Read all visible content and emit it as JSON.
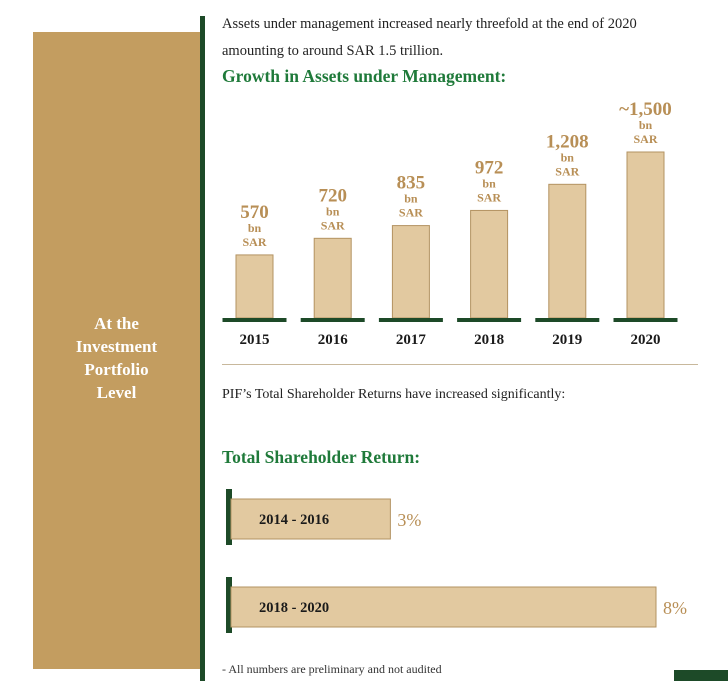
{
  "sidebar": {
    "lines": [
      "At the",
      "Investment",
      "Portfolio",
      "Level"
    ]
  },
  "intro": {
    "line1": "Assets under management increased nearly threefold at the end of 2020",
    "line2": "amounting to around SAR 1.5 trillion."
  },
  "aum_heading": "Growth in Assets under Management:",
  "tsr_intro": "PIF’s Total Shareholder Returns have increased significantly:",
  "tsr_heading": "Total Shareholder Return:",
  "footnote": "- All numbers are preliminary and not audited",
  "colors": {
    "bar_fill": "#e2c9a0",
    "bar_stroke": "#b39362",
    "value_label": "#b88f56",
    "baseline": "#1d4a28",
    "heading": "#1f7a3a",
    "sidebar": "#c39d60"
  },
  "chart_data": [
    {
      "type": "bar",
      "title": "Growth in Assets under Management:",
      "categories": [
        "2015",
        "2016",
        "2017",
        "2018",
        "2019",
        "2020"
      ],
      "values": [
        570,
        720,
        835,
        972,
        1208,
        1500
      ],
      "value_labels": [
        "570",
        "720",
        "835",
        "972",
        "1,208",
        "~1,500"
      ],
      "unit_line1": "bn",
      "unit_line2": "SAR",
      "ylim": [
        0,
        1600
      ],
      "grid": false,
      "legend": "none"
    },
    {
      "type": "bar",
      "orientation": "horizontal",
      "title": "Total Shareholder Return:",
      "categories": [
        "2014 - 2016",
        "2018 - 2020"
      ],
      "values": [
        3,
        8
      ],
      "value_labels": [
        "3%",
        "8%"
      ],
      "xlim": [
        0,
        8
      ],
      "grid": false,
      "legend": "none"
    }
  ]
}
